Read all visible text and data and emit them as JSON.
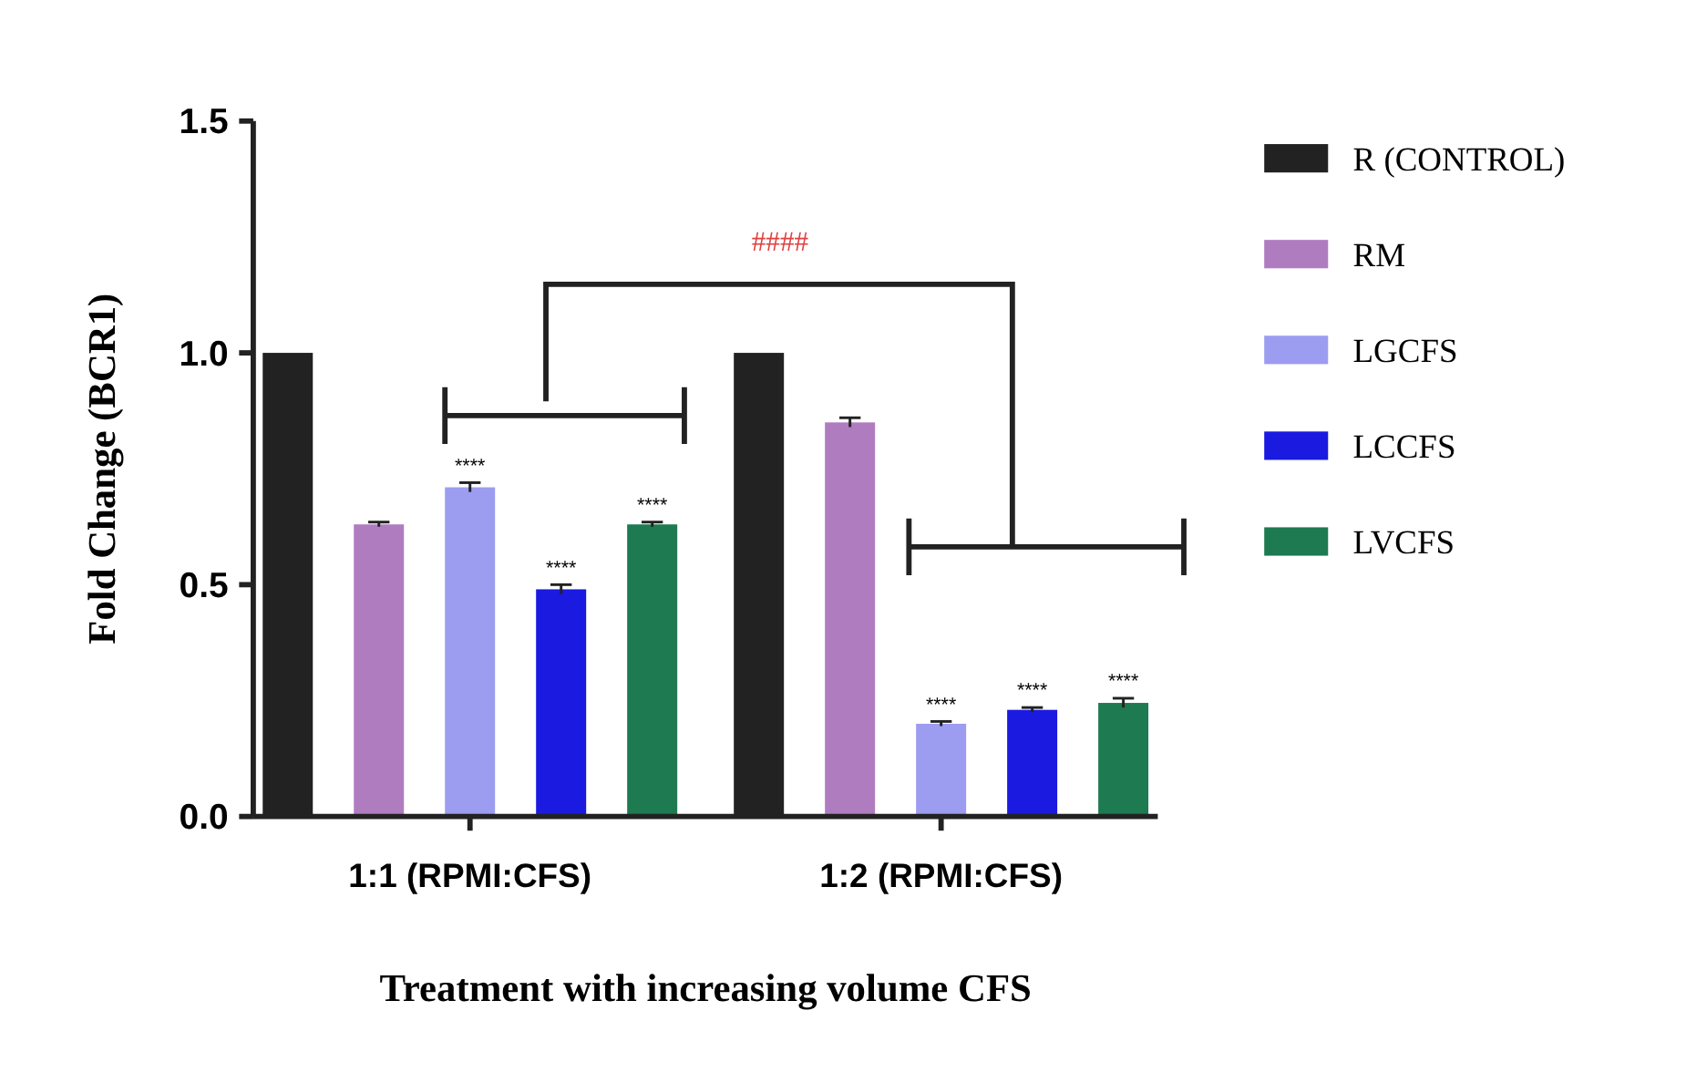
{
  "chart_data": {
    "type": "bar",
    "xlabel": "Treatment with increasing volume CFS",
    "ylabel": "Fold Change (BCR1)",
    "categories": [
      "1:1 (RPMI:CFS)",
      "1:2 (RPMI:CFS)"
    ],
    "series": [
      {
        "name": "R (CONTROL)",
        "color": "#222222",
        "values": [
          1.0,
          1.0
        ]
      },
      {
        "name": "RM",
        "color": "#b07cc0",
        "values": [
          0.63,
          0.85
        ],
        "errors": [
          0.005,
          0.01
        ]
      },
      {
        "name": "LGCFS",
        "color": "#9c9cf0",
        "values": [
          0.71,
          0.2
        ],
        "errors": [
          0.01,
          0.005
        ],
        "value_labels": [
          "****",
          "****"
        ]
      },
      {
        "name": "LCCFS",
        "color": "#1a1ae0",
        "values": [
          0.49,
          0.23
        ],
        "errors": [
          0.01,
          0.005
        ],
        "value_labels": [
          "****",
          "****"
        ]
      },
      {
        "name": "LVCFS",
        "color": "#1e7a50",
        "values": [
          0.63,
          0.245
        ],
        "errors": [
          0.005,
          0.01
        ],
        "value_labels": [
          "****",
          "****"
        ]
      }
    ],
    "ylim": [
      0,
      1.5
    ],
    "yticks": [
      {
        "value": 0,
        "label": "0.0"
      },
      0.5,
      {
        "value": 1,
        "label": "1.0"
      },
      1.5
    ],
    "annotations": [
      "####"
    ],
    "legend": "right",
    "grid": false
  }
}
